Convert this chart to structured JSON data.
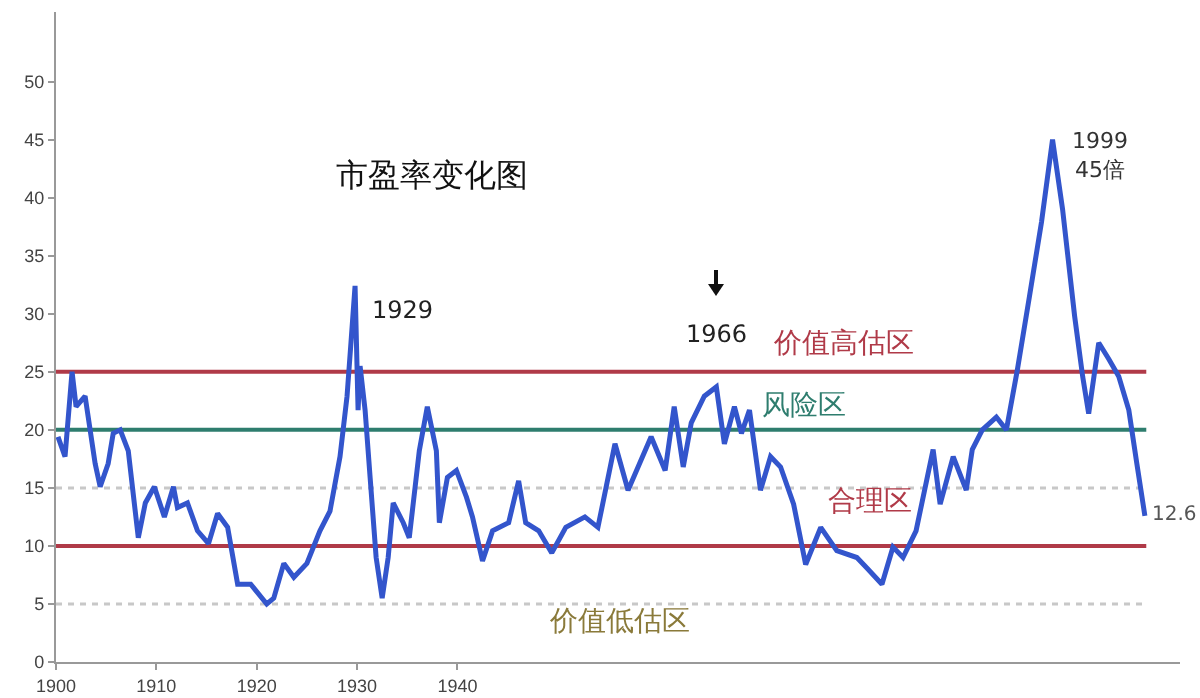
{
  "chart_data": {
    "type": "line",
    "title": "市盈率变化图",
    "x": [
      1900.2,
      1900.9,
      1901.6,
      1902,
      1902.9,
      1903.9,
      1904.4,
      1905.2,
      1905.7,
      1906.4,
      1907.2,
      1908.2,
      1908.9,
      1909.8,
      1910.8,
      1911.7,
      1912.1,
      1913.1,
      1914.1,
      1915.2,
      1916.1,
      1917.1,
      1918.1,
      1919.4,
      1921,
      1921.7,
      1922.7,
      1923.7,
      1925,
      1926.3,
      1927.3,
      1928.3,
      1929,
      1929.4,
      1929.8,
      1930.1,
      1930.3,
      1930.8,
      1931.3,
      1931.9,
      1932.5,
      1933.1,
      1933.6,
      1934.6,
      1935.2,
      1936.2,
      1937,
      1937.9,
      1938.2,
      1939,
      1939.9,
      1940.9,
      1941.5,
      1942.5,
      1943.5,
      1945.1,
      1946.1,
      1946.8,
      1948.1,
      1949.4,
      1950.8,
      1952.7,
      1954,
      1955.7,
      1957,
      1959.3,
      1960.7,
      1961.6,
      1962.5,
      1963.3,
      1964.6,
      1965.8,
      1966.6,
      1967.6,
      1968.3,
      1969.1,
      1970.2,
      1971.2,
      1972.2,
      1973.5,
      1974.7,
      1976.2,
      1977.8,
      1979.8,
      1980.8,
      1982.3,
      1983.4,
      1984.4,
      1985.7,
      1987.4,
      1988.1,
      1989.4,
      1990.7,
      1991.3,
      1992.3,
      1993.7,
      1994.7,
      1995.8,
      1997,
      1998.2,
      1999.3,
      2000.3,
      2001.5,
      2002.3,
      2002.9,
      2003.9,
      2004.9,
      2005.9,
      2006.9,
      2007.7,
      2008.5
    ],
    "series": [
      {
        "color": "#3355cc",
        "values": [
          19.4,
          17.7,
          25,
          22,
          22.9,
          17.1,
          15.1,
          17.1,
          19.7,
          20,
          18.2,
          10.7,
          13.7,
          15.1,
          12.5,
          15.1,
          13.3,
          13.7,
          11.3,
          10.2,
          12.8,
          11.6,
          6.7,
          6.7,
          5,
          5.5,
          8.5,
          7.3,
          8.5,
          11.3,
          13,
          17.7,
          22.9,
          27.6,
          32.4,
          21.7,
          25.5,
          21.7,
          15.9,
          9,
          5.5,
          9,
          13.7,
          12,
          10.7,
          18.2,
          22,
          18.2,
          12,
          15.9,
          16.5,
          14.2,
          12.5,
          8.7,
          11.3,
          12,
          15.6,
          12,
          11.3,
          9.4,
          11.6,
          12.5,
          11.6,
          18.8,
          14.8,
          19.4,
          16.5,
          22,
          16.8,
          20.6,
          22.9,
          23.7,
          18.8,
          22,
          19.7,
          21.7,
          14.8,
          17.7,
          16.8,
          13.6,
          8.4,
          11.6,
          9.6,
          9,
          8.1,
          6.7,
          9.9,
          9,
          11.3,
          18.3,
          13.6,
          17.7,
          14.8,
          18.3,
          20,
          21.1,
          20,
          25.2,
          31.5,
          37.9,
          45,
          39,
          29.8,
          24.6,
          21.4,
          27.5,
          26.1,
          24.6,
          21.7,
          17.1,
          12.6
        ]
      }
    ],
    "xlim": [
      1900,
      2012
    ],
    "xticks": [
      1900,
      1910,
      1920,
      1930,
      1940
    ],
    "ylim": [
      0,
      56
    ],
    "yticks": [
      0,
      5,
      10,
      15,
      20,
      25,
      30,
      35,
      40,
      45,
      50
    ],
    "ref_lines": [
      {
        "axis": "y",
        "value": 25,
        "color": "#b03a48",
        "label": "价值高估区"
      },
      {
        "axis": "y",
        "value": 20,
        "color": "#2e7d6e",
        "label": "风险区"
      },
      {
        "axis": "y",
        "value": 10,
        "color": "#b03a48",
        "label": "合理区"
      },
      {
        "axis": "y",
        "value": 15,
        "color": "#c8c8c8",
        "line_style": "dotted"
      },
      {
        "axis": "y",
        "value": 5,
        "color": "#c8c8c8",
        "line_style": "dotted",
        "label": "价值低估区"
      }
    ],
    "annotations": [
      {
        "text": "1929",
        "x": 1929.8,
        "y": 32.4
      },
      {
        "text": "1966",
        "x": 1965.8,
        "y": 23.7
      },
      {
        "text": "1999\n45倍",
        "x": 1999.3,
        "y": 45
      },
      {
        "text": "12.6",
        "x": 2008.5,
        "y": 12.6
      }
    ],
    "line_style": "solid"
  }
}
